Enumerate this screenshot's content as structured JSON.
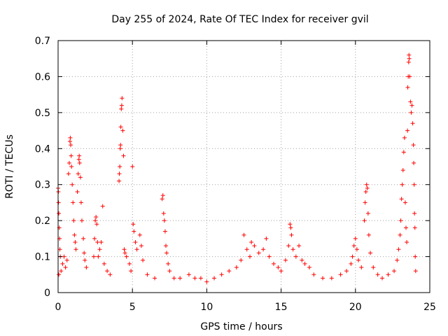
{
  "chart_data": {
    "type": "scatter",
    "title": "Day 255 of 2024, Rate Of TEC Index for receiver gvil",
    "xlabel": "GPS time / hours",
    "ylabel": "ROTI / TECUs",
    "xlim": [
      0,
      25
    ],
    "ylim": [
      0,
      0.7
    ],
    "x_ticks": [
      "0",
      "5",
      "10",
      "15",
      "20",
      "25"
    ],
    "y_ticks": [
      "0",
      "0.1",
      "0.2",
      "0.3",
      "0.4",
      "0.5",
      "0.6",
      "0.7"
    ],
    "grid": true,
    "marker": "+",
    "color": "#ff0000",
    "series": [
      {
        "name": "ROTI",
        "points": [
          [
            0.0,
            0.29
          ],
          [
            0.02,
            0.28
          ],
          [
            0.03,
            0.25
          ],
          [
            0.05,
            0.22
          ],
          [
            0.08,
            0.18
          ],
          [
            0.1,
            0.15
          ],
          [
            0.12,
            0.12
          ],
          [
            0.15,
            0.1
          ],
          [
            0.05,
            0.05
          ],
          [
            0.2,
            0.06
          ],
          [
            0.3,
            0.08
          ],
          [
            0.4,
            0.1
          ],
          [
            0.5,
            0.07
          ],
          [
            0.6,
            0.09
          ],
          [
            0.7,
            0.33
          ],
          [
            0.75,
            0.36
          ],
          [
            0.8,
            0.42
          ],
          [
            0.82,
            0.43
          ],
          [
            0.85,
            0.41
          ],
          [
            0.88,
            0.38
          ],
          [
            0.9,
            0.35
          ],
          [
            0.95,
            0.3
          ],
          [
            1.0,
            0.25
          ],
          [
            1.05,
            0.2
          ],
          [
            1.1,
            0.16
          ],
          [
            1.15,
            0.14
          ],
          [
            1.2,
            0.12
          ],
          [
            1.3,
            0.28
          ],
          [
            1.35,
            0.33
          ],
          [
            1.4,
            0.37
          ],
          [
            1.42,
            0.38
          ],
          [
            1.45,
            0.36
          ],
          [
            1.5,
            0.32
          ],
          [
            1.55,
            0.25
          ],
          [
            1.6,
            0.2
          ],
          [
            1.7,
            0.15
          ],
          [
            1.75,
            0.11
          ],
          [
            1.8,
            0.09
          ],
          [
            1.9,
            0.07
          ],
          [
            2.4,
            0.1
          ],
          [
            2.45,
            0.15
          ],
          [
            2.5,
            0.2
          ],
          [
            2.55,
            0.21
          ],
          [
            2.6,
            0.19
          ],
          [
            2.65,
            0.14
          ],
          [
            2.7,
            0.1
          ],
          [
            2.8,
            0.12
          ],
          [
            2.9,
            0.14
          ],
          [
            3.0,
            0.24
          ],
          [
            3.1,
            0.08
          ],
          [
            3.3,
            0.06
          ],
          [
            3.5,
            0.05
          ],
          [
            4.1,
            0.31
          ],
          [
            4.12,
            0.33
          ],
          [
            4.15,
            0.35
          ],
          [
            4.18,
            0.4
          ],
          [
            4.2,
            0.41
          ],
          [
            4.22,
            0.46
          ],
          [
            4.25,
            0.51
          ],
          [
            4.28,
            0.52
          ],
          [
            4.3,
            0.54
          ],
          [
            4.35,
            0.45
          ],
          [
            4.4,
            0.38
          ],
          [
            4.45,
            0.12
          ],
          [
            4.5,
            0.11
          ],
          [
            4.6,
            0.1
          ],
          [
            4.8,
            0.08
          ],
          [
            4.9,
            0.06
          ],
          [
            5.0,
            0.35
          ],
          [
            5.05,
            0.19
          ],
          [
            5.1,
            0.17
          ],
          [
            5.2,
            0.14
          ],
          [
            5.3,
            0.12
          ],
          [
            5.5,
            0.16
          ],
          [
            5.6,
            0.13
          ],
          [
            5.7,
            0.09
          ],
          [
            6.0,
            0.05
          ],
          [
            6.5,
            0.04
          ],
          [
            7.0,
            0.26
          ],
          [
            7.05,
            0.27
          ],
          [
            7.1,
            0.22
          ],
          [
            7.15,
            0.2
          ],
          [
            7.2,
            0.17
          ],
          [
            7.25,
            0.13
          ],
          [
            7.3,
            0.11
          ],
          [
            7.4,
            0.08
          ],
          [
            7.5,
            0.06
          ],
          [
            7.8,
            0.04
          ],
          [
            8.2,
            0.04
          ],
          [
            8.8,
            0.05
          ],
          [
            9.2,
            0.04
          ],
          [
            9.6,
            0.04
          ],
          [
            10.0,
            0.03
          ],
          [
            10.5,
            0.04
          ],
          [
            11.0,
            0.05
          ],
          [
            11.5,
            0.06
          ],
          [
            12.0,
            0.07
          ],
          [
            12.3,
            0.09
          ],
          [
            12.5,
            0.16
          ],
          [
            12.7,
            0.12
          ],
          [
            12.9,
            0.1
          ],
          [
            13.0,
            0.14
          ],
          [
            13.2,
            0.13
          ],
          [
            13.5,
            0.11
          ],
          [
            13.8,
            0.12
          ],
          [
            14.0,
            0.15
          ],
          [
            14.2,
            0.1
          ],
          [
            14.5,
            0.08
          ],
          [
            14.8,
            0.07
          ],
          [
            15.0,
            0.06
          ],
          [
            15.3,
            0.09
          ],
          [
            15.5,
            0.13
          ],
          [
            15.6,
            0.19
          ],
          [
            15.65,
            0.18
          ],
          [
            15.7,
            0.16
          ],
          [
            15.8,
            0.12
          ],
          [
            16.0,
            0.1
          ],
          [
            16.2,
            0.13
          ],
          [
            16.4,
            0.09
          ],
          [
            16.6,
            0.08
          ],
          [
            16.9,
            0.07
          ],
          [
            17.2,
            0.05
          ],
          [
            17.8,
            0.04
          ],
          [
            18.4,
            0.04
          ],
          [
            19.0,
            0.05
          ],
          [
            19.4,
            0.06
          ],
          [
            19.7,
            0.08
          ],
          [
            19.8,
            0.1
          ],
          [
            19.9,
            0.13
          ],
          [
            20.0,
            0.15
          ],
          [
            20.1,
            0.12
          ],
          [
            20.2,
            0.09
          ],
          [
            20.4,
            0.07
          ],
          [
            20.6,
            0.2
          ],
          [
            20.65,
            0.25
          ],
          [
            20.7,
            0.28
          ],
          [
            20.75,
            0.3
          ],
          [
            20.8,
            0.29
          ],
          [
            20.85,
            0.22
          ],
          [
            20.9,
            0.16
          ],
          [
            21.0,
            0.11
          ],
          [
            21.2,
            0.07
          ],
          [
            21.5,
            0.05
          ],
          [
            21.8,
            0.04
          ],
          [
            22.2,
            0.05
          ],
          [
            22.6,
            0.06
          ],
          [
            22.8,
            0.09
          ],
          [
            22.9,
            0.12
          ],
          [
            23.0,
            0.16
          ],
          [
            23.05,
            0.2
          ],
          [
            23.1,
            0.26
          ],
          [
            23.15,
            0.3
          ],
          [
            23.2,
            0.34
          ],
          [
            23.25,
            0.39
          ],
          [
            23.3,
            0.43
          ],
          [
            23.35,
            0.25
          ],
          [
            23.4,
            0.18
          ],
          [
            23.45,
            0.14
          ],
          [
            23.5,
            0.45
          ],
          [
            23.52,
            0.57
          ],
          [
            23.55,
            0.6
          ],
          [
            23.58,
            0.64
          ],
          [
            23.6,
            0.66
          ],
          [
            23.62,
            0.65
          ],
          [
            23.65,
            0.6
          ],
          [
            23.7,
            0.53
          ],
          [
            23.75,
            0.5
          ],
          [
            23.8,
            0.52
          ],
          [
            23.85,
            0.47
          ],
          [
            23.9,
            0.41
          ],
          [
            23.92,
            0.36
          ],
          [
            23.95,
            0.3
          ],
          [
            23.97,
            0.22
          ],
          [
            24.0,
            0.18
          ],
          [
            24.02,
            0.1
          ],
          [
            24.05,
            0.06
          ]
        ]
      }
    ]
  }
}
